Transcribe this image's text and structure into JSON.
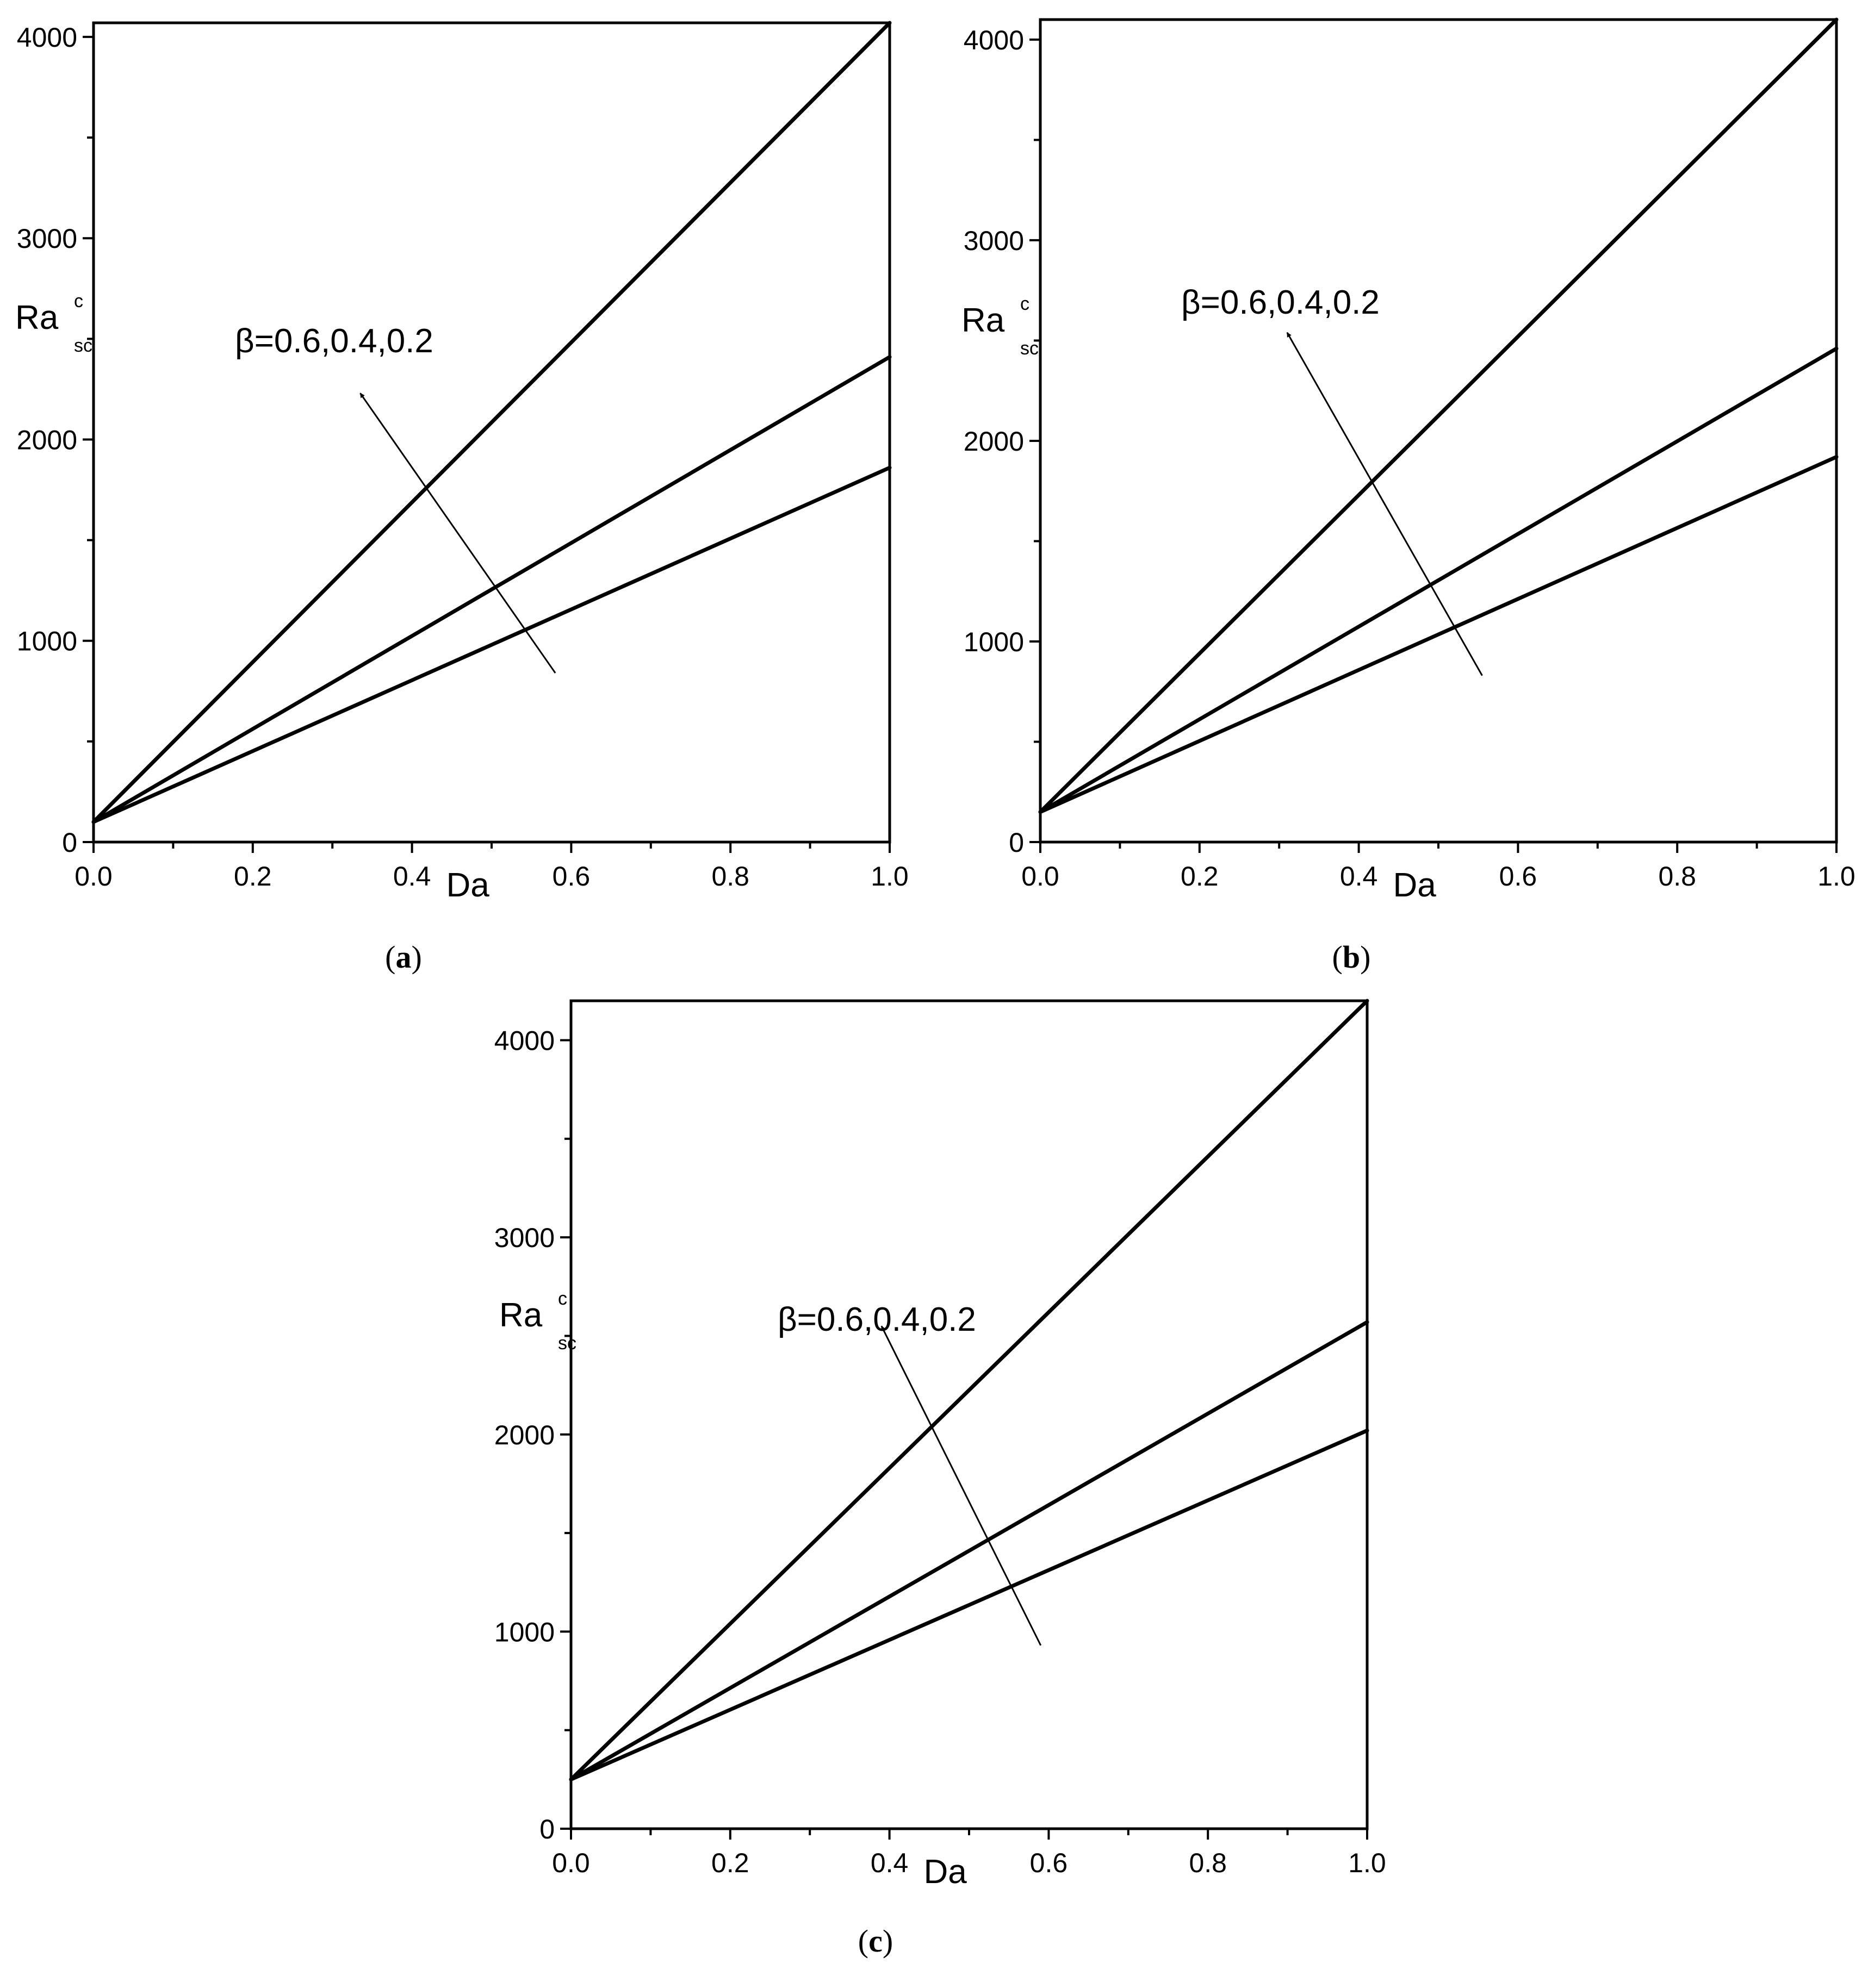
{
  "chart_data": [
    {
      "type": "line",
      "panel_label": "a",
      "xlabel": "Da",
      "ylabel": {
        "base": "Ra",
        "superscript": "c",
        "subscript": "sc"
      },
      "xlim": [
        0.0,
        1.0
      ],
      "ylim": [
        0,
        4070
      ],
      "x_ticks": [
        "0.0",
        "0.2",
        "0.4",
        "0.6",
        "0.8",
        "1.0"
      ],
      "y_ticks": [
        "0",
        "1000",
        "2000",
        "3000",
        "4000"
      ],
      "annotation": "β=0.6,0.4,0.2",
      "arrow_from": [
        0.58,
        840
      ],
      "arrow_to": [
        0.335,
        2230
      ],
      "series": [
        {
          "x": [
            0.0,
            1.0
          ],
          "y": [
            100,
            4070
          ]
        },
        {
          "x": [
            0.0,
            1.0
          ],
          "y": [
            100,
            2410
          ]
        },
        {
          "x": [
            0.0,
            1.0
          ],
          "y": [
            100,
            1860
          ]
        }
      ],
      "grid": false
    },
    {
      "type": "line",
      "panel_label": "b",
      "xlabel": "Da",
      "ylabel": {
        "base": "Ra",
        "superscript": "c",
        "subscript": "sc"
      },
      "xlim": [
        0.0,
        1.0
      ],
      "ylim": [
        0,
        4100
      ],
      "x_ticks": [
        "0.0",
        "0.2",
        "0.4",
        "0.6",
        "0.8",
        "1.0"
      ],
      "y_ticks": [
        "0",
        "1000",
        "2000",
        "3000",
        "4000"
      ],
      "annotation": "β=0.6,0.4,0.2",
      "arrow_from": [
        0.555,
        830
      ],
      "arrow_to": [
        0.31,
        2540
      ],
      "series": [
        {
          "x": [
            0.0,
            1.0
          ],
          "y": [
            150,
            4100
          ]
        },
        {
          "x": [
            0.0,
            1.0
          ],
          "y": [
            150,
            2460
          ]
        },
        {
          "x": [
            0.0,
            1.0
          ],
          "y": [
            150,
            1920
          ]
        }
      ],
      "grid": false
    },
    {
      "type": "line",
      "panel_label": "c",
      "xlabel": "Da",
      "ylabel": {
        "base": "Ra",
        "superscript": "c",
        "subscript": "sc"
      },
      "xlim": [
        0.0,
        1.0
      ],
      "ylim": [
        0,
        4200
      ],
      "x_ticks": [
        "0.0",
        "0.2",
        "0.4",
        "0.6",
        "0.8",
        "1.0"
      ],
      "y_ticks": [
        "0",
        "1000",
        "2000",
        "3000",
        "4000"
      ],
      "annotation": "β=0.6,0.4,0.2",
      "arrow_from": [
        0.59,
        930
      ],
      "arrow_to": [
        0.39,
        2550
      ],
      "series": [
        {
          "x": [
            0.0,
            1.0
          ],
          "y": [
            250,
            4200
          ]
        },
        {
          "x": [
            0.0,
            1.0
          ],
          "y": [
            250,
            2570
          ]
        },
        {
          "x": [
            0.0,
            1.0
          ],
          "y": [
            250,
            2020
          ]
        }
      ],
      "grid": false
    }
  ]
}
